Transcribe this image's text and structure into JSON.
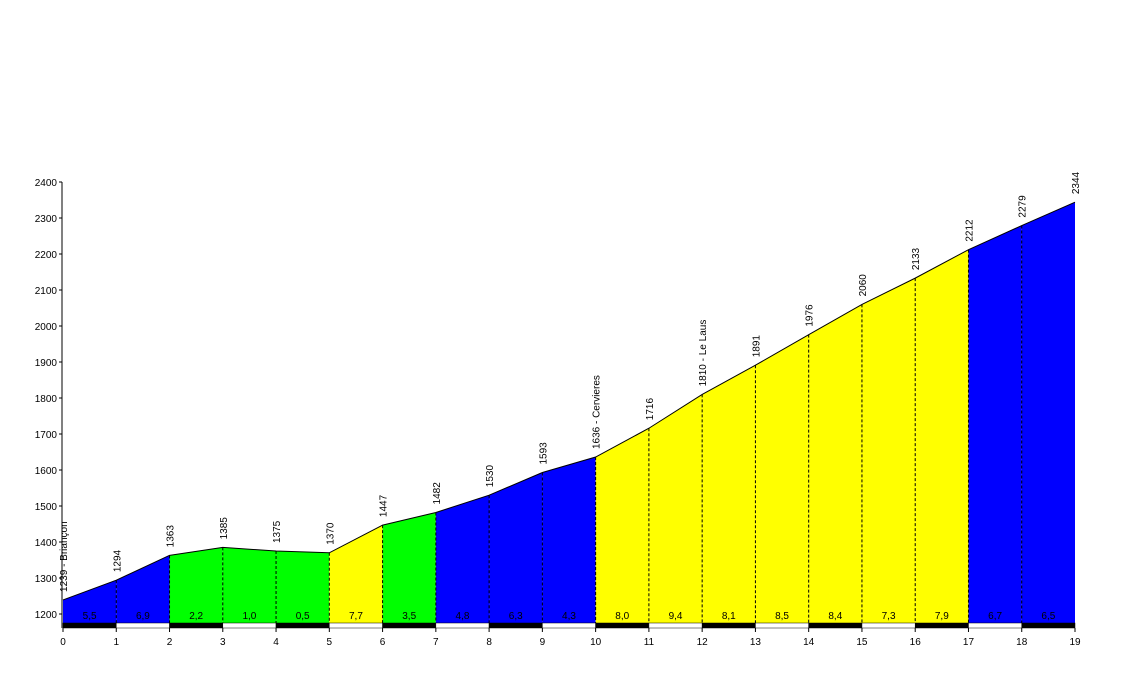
{
  "chart_data": {
    "type": "elevation-profile",
    "x": [
      0,
      1,
      2,
      3,
      4,
      5,
      6,
      7,
      8,
      9,
      10,
      11,
      12,
      13,
      14,
      15,
      16,
      17,
      18,
      19
    ],
    "xlim": [
      0,
      19
    ],
    "xticks": [
      0,
      1,
      2,
      3,
      4,
      5,
      6,
      7,
      8,
      9,
      10,
      11,
      12,
      13,
      14,
      15,
      16,
      17,
      18,
      19
    ],
    "ylim": [
      1175,
      2400
    ],
    "yticks": [
      1200,
      1300,
      1400,
      1500,
      1600,
      1700,
      1800,
      1900,
      2000,
      2100,
      2200,
      2300,
      2400
    ],
    "elevation": {
      "values": [
        1239,
        1294,
        1363,
        1385,
        1375,
        1370,
        1447,
        1482,
        1530,
        1593,
        1636,
        1716,
        1810,
        1891,
        1976,
        2060,
        2133,
        2212,
        2279,
        2344
      ],
      "value_labels": [
        "1239 - Briançon",
        "1294",
        "1363",
        "1385",
        "1375",
        "1370",
        "1447",
        "1482",
        "1530",
        "1593",
        "1636 - Cervieres",
        "1716",
        "1810 - Le Laus",
        "1891",
        "1976",
        "2060",
        "2133",
        "2212",
        "2279",
        "2344"
      ]
    },
    "gradient": {
      "values": [
        5.5,
        6.9,
        2.2,
        1.0,
        0.5,
        7.7,
        3.5,
        4.8,
        6.3,
        4.3,
        8.0,
        9.4,
        8.1,
        8.5,
        8.4,
        7.3,
        7.9,
        6.7,
        6.5
      ],
      "value_labels": [
        "5,5",
        "6,9",
        "2,2",
        "1,0",
        "0,5",
        "7,7",
        "3,5",
        "4,8",
        "6,3",
        "4,3",
        "8,0",
        "9,4",
        "8,1",
        "8,5",
        "8,4",
        "7,3",
        "7,9",
        "6,7",
        "6,5"
      ],
      "colors": [
        "#0000ff",
        "#0000ff",
        "#00ff00",
        "#00ff00",
        "#00ff00",
        "#ffff00",
        "#00ff00",
        "#0000ff",
        "#0000ff",
        "#0000ff",
        "#ffff00",
        "#ffff00",
        "#ffff00",
        "#ffff00",
        "#ffff00",
        "#ffff00",
        "#ffff00",
        "#0000ff",
        "#0000ff"
      ]
    }
  }
}
